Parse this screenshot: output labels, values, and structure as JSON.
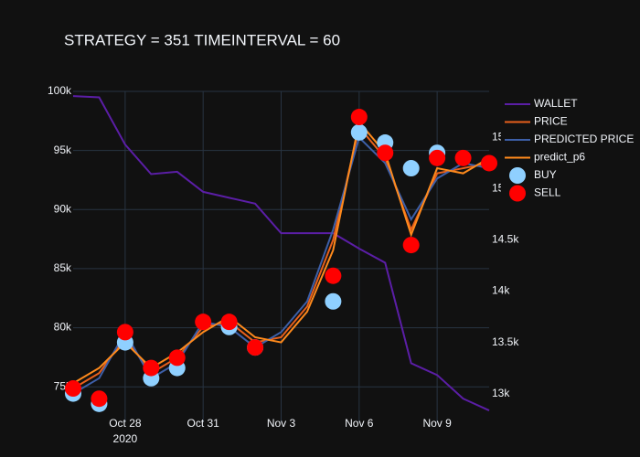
{
  "chart_data": {
    "type": "line",
    "title": "STRATEGY = 351 TIMEINTERVAL = 60",
    "x": [
      "2020-10-26",
      "2020-10-27",
      "2020-10-28",
      "2020-10-29",
      "2020-10-30",
      "2020-10-31",
      "2020-11-01",
      "2020-11-02",
      "2020-11-03",
      "2020-11-04",
      "2020-11-05",
      "2020-11-06",
      "2020-11-07",
      "2020-11-08",
      "2020-11-09",
      "2020-11-10",
      "2020-11-11"
    ],
    "xlim": [
      "2020-10-26",
      "2020-11-11"
    ],
    "xticks": [
      {
        "value": "2020-10-28",
        "label": "Oct 28"
      },
      {
        "value": "2020-10-31",
        "label": "Oct 31"
      },
      {
        "value": "2020-11-03",
        "label": "Nov 3"
      },
      {
        "value": "2020-11-06",
        "label": "Nov 6"
      },
      {
        "value": "2020-11-09",
        "label": "Nov 9"
      }
    ],
    "x_year_label": "2020",
    "ylim": [
      72000,
      100000
    ],
    "yticks": [
      {
        "value": 75000,
        "label": "75k"
      },
      {
        "value": 80000,
        "label": "80k"
      },
      {
        "value": 85000,
        "label": "85k"
      },
      {
        "value": 90000,
        "label": "90k"
      },
      {
        "value": 95000,
        "label": "95k"
      },
      {
        "value": 100000,
        "label": "100k"
      }
    ],
    "y2lim": [
      12720,
      15950
    ],
    "y2ticks": [
      {
        "value": 13000,
        "label": "13k"
      },
      {
        "value": 13500,
        "label": "13.5k"
      },
      {
        "value": 14000,
        "label": "14k"
      },
      {
        "value": 14500,
        "label": "14.5k"
      },
      {
        "value": 15000,
        "label": "15k"
      },
      {
        "value": 15500,
        "label": "15.5k"
      }
    ],
    "grid": true,
    "series": [
      {
        "name": "WALLET",
        "color": "#5b1ea6",
        "values": [
          99600,
          99500,
          95500,
          93000,
          93200,
          91500,
          91000,
          90500,
          88000,
          88000,
          88000,
          86700,
          85500,
          77000,
          76000,
          74000,
          73000
        ]
      },
      {
        "name": "PRICE",
        "color": "#e8601c",
        "axis": "y2",
        "values": [
          13050,
          13200,
          13550,
          13200,
          13350,
          13650,
          13700,
          13500,
          13550,
          13850,
          14500,
          15600,
          15300,
          14600,
          15150,
          15200,
          15250
        ]
      },
      {
        "name": "PREDICTED PRICE",
        "color": "#3d5fa8",
        "axis": "y2",
        "values": [
          13000,
          13150,
          13600,
          13150,
          13300,
          13700,
          13650,
          13450,
          13600,
          13900,
          14600,
          15500,
          15250,
          14700,
          15100,
          15250,
          15200
        ]
      },
      {
        "name": "predict_p6",
        "color": "#ff8a1c",
        "axis": "y2",
        "values": [
          13100,
          13250,
          13500,
          13250,
          13400,
          13600,
          13750,
          13550,
          13500,
          13800,
          14400,
          15650,
          15350,
          14550,
          15200,
          15150,
          15300
        ]
      }
    ],
    "markers": [
      {
        "name": "BUY",
        "color": "#8fd0ff",
        "x": [
          "2020-10-26",
          "2020-10-27",
          "2020-10-28",
          "2020-10-29",
          "2020-10-30",
          "2020-11-01",
          "2020-11-02",
          "2020-11-05",
          "2020-11-06",
          "2020-11-07",
          "2020-11-08",
          "2020-11-09"
        ],
        "values": [
          13000,
          12900,
          13500,
          13150,
          13250,
          13650,
          13450,
          13900,
          15550,
          15450,
          15200,
          15350
        ]
      },
      {
        "name": "SELL",
        "color": "#ff0000",
        "x": [
          "2020-10-26",
          "2020-10-27",
          "2020-10-28",
          "2020-10-29",
          "2020-10-30",
          "2020-10-31",
          "2020-11-01",
          "2020-11-02",
          "2020-11-05",
          "2020-11-06",
          "2020-11-07",
          "2020-11-08",
          "2020-11-09",
          "2020-11-10",
          "2020-11-11"
        ],
        "values": [
          13050,
          12950,
          13600,
          13250,
          13350,
          13700,
          13700,
          13450,
          14150,
          15700,
          15350,
          14450,
          15300,
          15300,
          15250
        ]
      }
    ]
  }
}
